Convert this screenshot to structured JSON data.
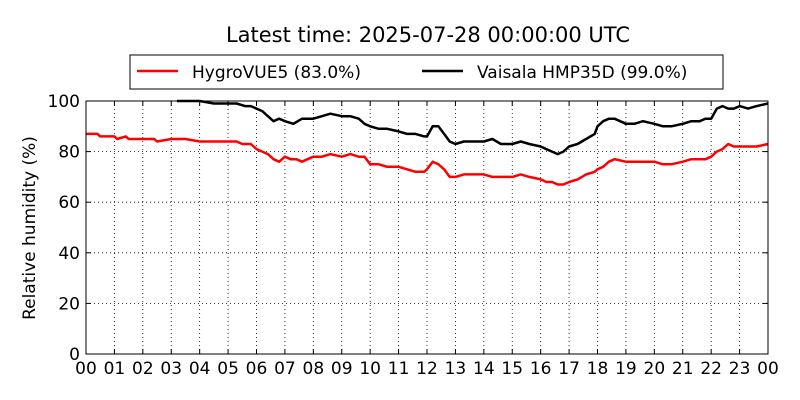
{
  "chart_data": {
    "type": "line",
    "title": "Latest time: 2025-07-28 00:00:00 UTC",
    "xlabel": "",
    "ylabel": "Relative humidity (%)",
    "xlim": [
      0,
      24
    ],
    "ylim": [
      0,
      100
    ],
    "grid": true,
    "legend_position": "top",
    "x_tick_labels": [
      "00",
      "01",
      "02",
      "03",
      "04",
      "05",
      "06",
      "07",
      "08",
      "09",
      "10",
      "11",
      "12",
      "13",
      "14",
      "15",
      "16",
      "17",
      "18",
      "19",
      "20",
      "21",
      "22",
      "23",
      "00"
    ],
    "x_tick_values": [
      0,
      1,
      2,
      3,
      4,
      5,
      6,
      7,
      8,
      9,
      10,
      11,
      12,
      13,
      14,
      15,
      16,
      17,
      18,
      19,
      20,
      21,
      22,
      23,
      24
    ],
    "y_ticks": [
      0,
      20,
      40,
      60,
      80,
      100
    ],
    "x_units": "hour of day (UTC)",
    "series": [
      {
        "name": "HygroVUE5 (83.0%)",
        "color": "#ff0000",
        "x": [
          0,
          0.4,
          0.5,
          1,
          1.1,
          1.4,
          1.5,
          2,
          2.4,
          2.5,
          3,
          3.5,
          4,
          4.5,
          5,
          5.3,
          5.5,
          5.8,
          6,
          6.2,
          6.4,
          6.6,
          6.8,
          7,
          7.2,
          7.4,
          7.6,
          7.8,
          8,
          8.3,
          8.6,
          9,
          9.3,
          9.6,
          9.8,
          10,
          10.3,
          10.6,
          11,
          11.3,
          11.6,
          11.9,
          12,
          12.2,
          12.4,
          12.6,
          12.8,
          13,
          13.3,
          13.6,
          14,
          14.3,
          14.6,
          15,
          15.3,
          15.6,
          16,
          16.2,
          16.4,
          16.6,
          16.8,
          17,
          17.3,
          17.6,
          17.9,
          18,
          18.2,
          18.4,
          18.6,
          19,
          19.3,
          19.6,
          20,
          20.3,
          20.6,
          21,
          21.3,
          21.6,
          21.8,
          22,
          22.2,
          22.4,
          22.6,
          22.8,
          23,
          23.3,
          23.6,
          24
        ],
        "y": [
          87,
          87,
          86,
          86,
          85,
          86,
          85,
          85,
          85,
          84,
          85,
          85,
          84,
          84,
          84,
          84,
          83,
          83,
          81,
          80,
          79,
          77,
          76,
          78,
          77,
          77,
          76,
          77,
          78,
          78,
          79,
          78,
          79,
          78,
          78,
          75,
          75,
          74,
          74,
          73,
          72,
          72,
          73,
          76,
          75,
          73,
          70,
          70,
          71,
          71,
          71,
          70,
          70,
          70,
          71,
          70,
          69,
          68,
          68,
          67,
          67,
          68,
          69,
          71,
          72,
          73,
          74,
          76,
          77,
          76,
          76,
          76,
          76,
          75,
          75,
          76,
          77,
          77,
          77,
          78,
          80,
          81,
          83,
          82,
          82,
          82,
          82,
          83
        ]
      },
      {
        "name": "Vaisala HMP35D (99.0%)",
        "color": "#000000",
        "x": [
          3.2,
          4,
          4.5,
          5,
          5.3,
          5.6,
          5.8,
          6,
          6.2,
          6.4,
          6.6,
          6.8,
          7,
          7.3,
          7.6,
          8,
          8.3,
          8.6,
          9,
          9.3,
          9.6,
          9.8,
          10,
          10.3,
          10.6,
          11,
          11.3,
          11.6,
          11.9,
          12,
          12.2,
          12.4,
          12.6,
          12.8,
          13,
          13.3,
          13.6,
          14,
          14.3,
          14.6,
          15,
          15.3,
          15.6,
          16,
          16.2,
          16.4,
          16.6,
          16.8,
          17,
          17.3,
          17.6,
          17.9,
          18,
          18.2,
          18.4,
          18.6,
          19,
          19.3,
          19.6,
          20,
          20.3,
          20.6,
          21,
          21.3,
          21.6,
          21.8,
          22,
          22.2,
          22.4,
          22.6,
          22.8,
          23,
          23.3,
          23.6,
          24
        ],
        "y": [
          100,
          100,
          99,
          99,
          99,
          98,
          98,
          97,
          96,
          94,
          92,
          93,
          92,
          91,
          93,
          93,
          94,
          95,
          94,
          94,
          93,
          91,
          90,
          89,
          89,
          88,
          87,
          87,
          86,
          86,
          90,
          90,
          87,
          84,
          83,
          84,
          84,
          84,
          85,
          83,
          83,
          84,
          83,
          82,
          81,
          80,
          79,
          80,
          82,
          83,
          85,
          87,
          90,
          92,
          93,
          93,
          91,
          91,
          92,
          91,
          90,
          90,
          91,
          92,
          92,
          93,
          93,
          97,
          98,
          97,
          97,
          98,
          97,
          98,
          99
        ]
      }
    ]
  }
}
